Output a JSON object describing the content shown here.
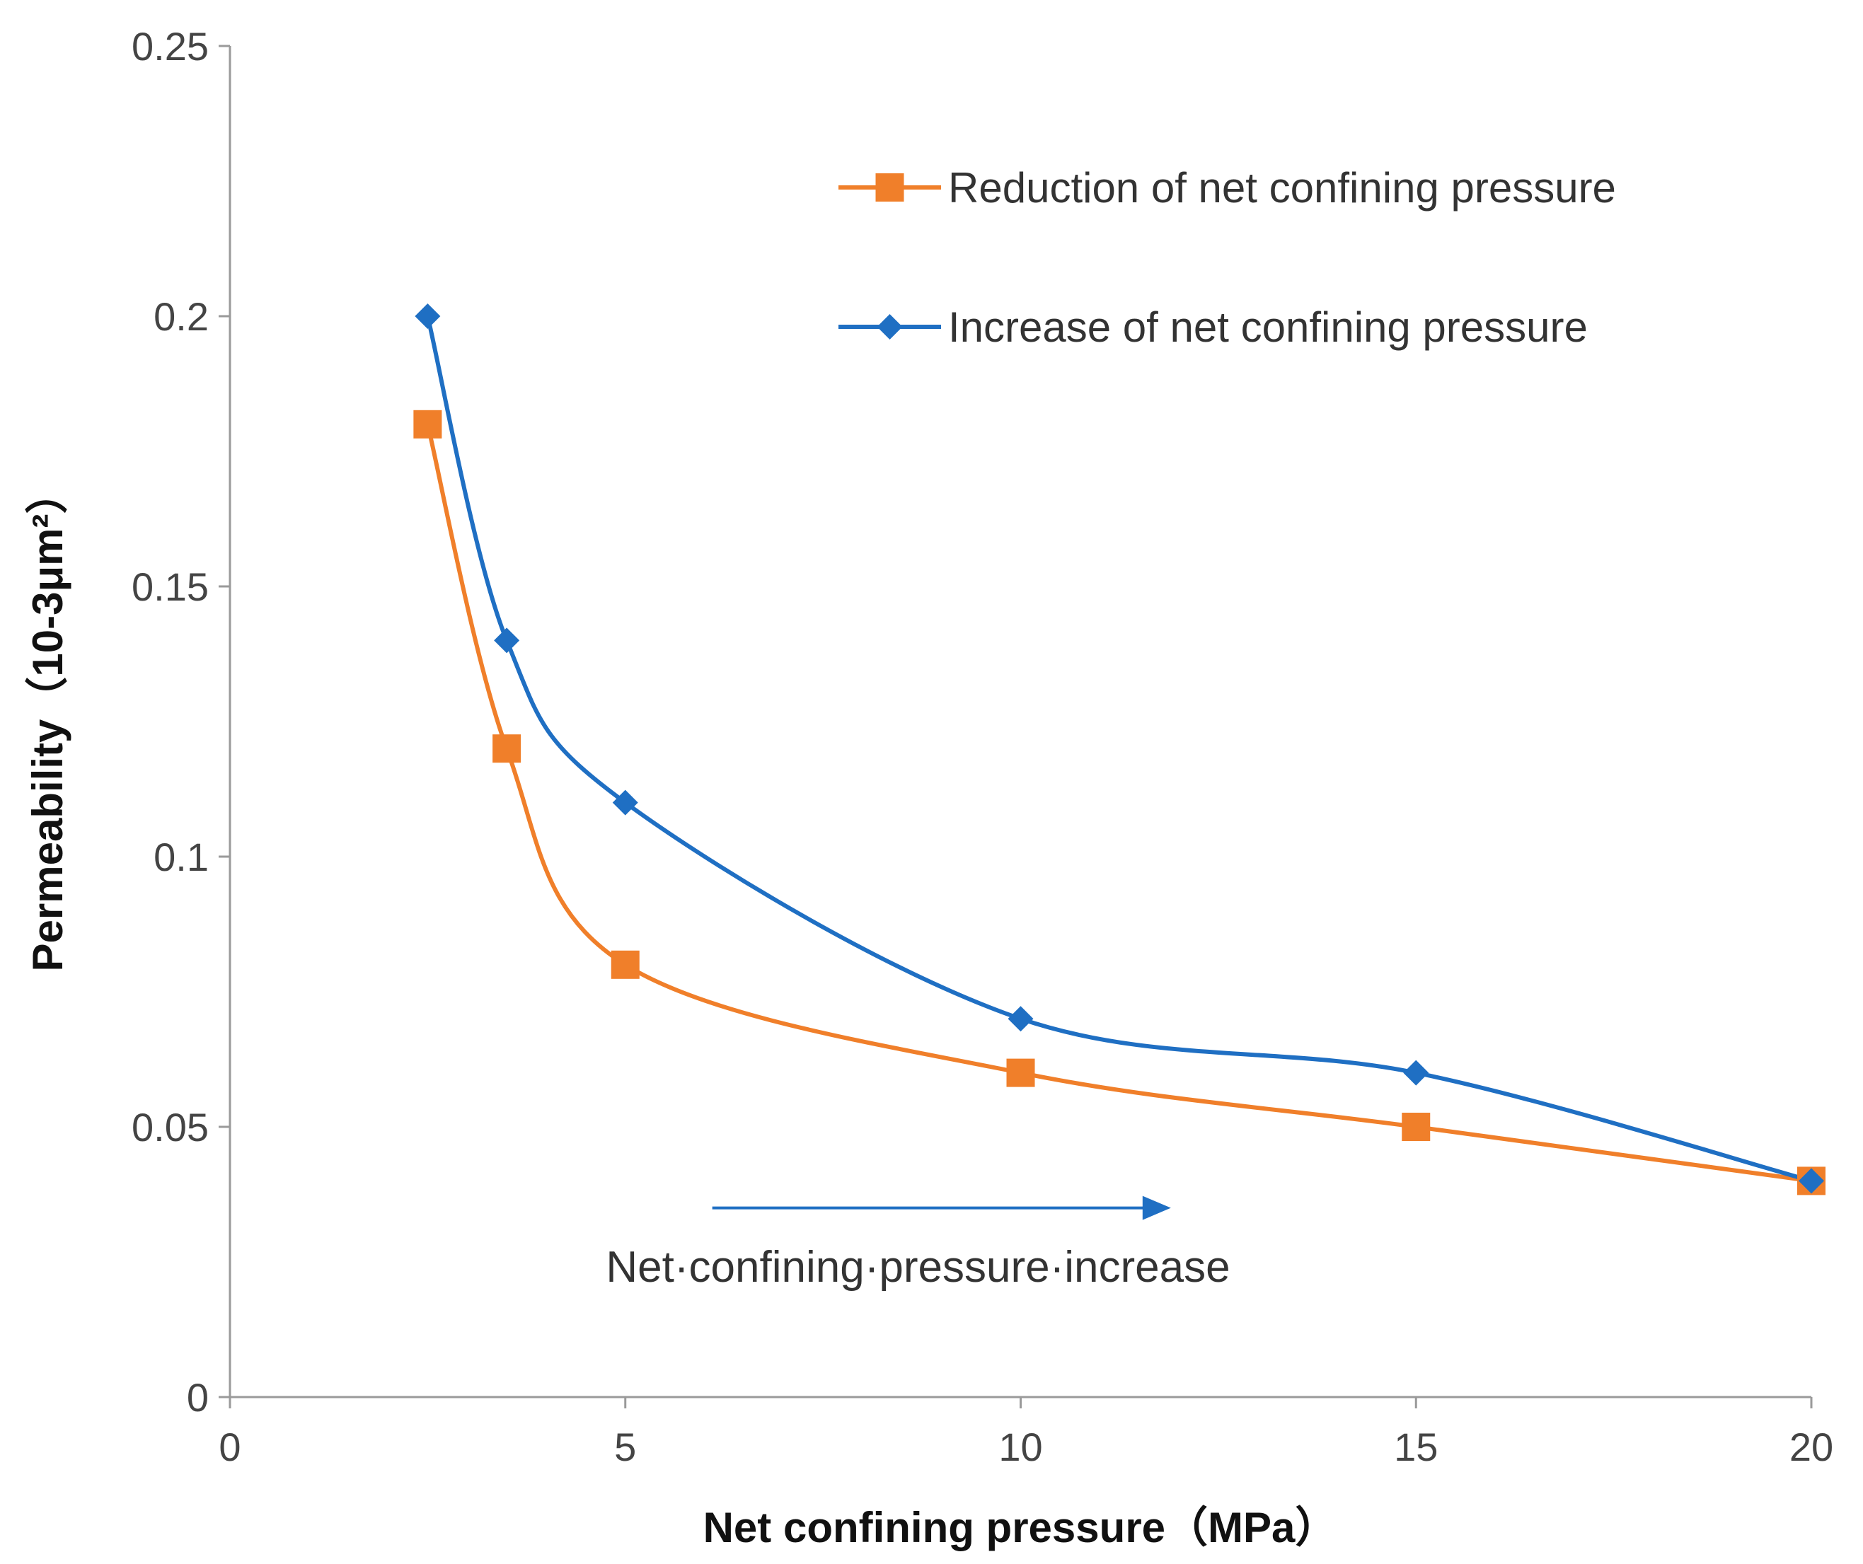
{
  "chart_data": {
    "type": "line",
    "title": "",
    "xlabel": "Net confining pressure（MPa）",
    "ylabel": "Permeability（10-3μm²）",
    "xlim": [
      0,
      20
    ],
    "ylim": [
      0,
      0.25
    ],
    "x_ticks": [
      0,
      5,
      10,
      15,
      20
    ],
    "x_tick_labels": [
      "0",
      "5",
      "10",
      "15",
      "20"
    ],
    "y_ticks": [
      0,
      0.05,
      0.1,
      0.15,
      0.2,
      0.25
    ],
    "y_tick_labels": [
      "0",
      "0.05",
      "0.1",
      "0.15",
      "0.2",
      "0.25"
    ],
    "grid": false,
    "legend_position": "top-right",
    "series": [
      {
        "name": "Reduction of net confining pressure",
        "color": "#F07F2A",
        "marker": "square",
        "x": [
          2.5,
          3.5,
          5,
          10,
          15,
          20
        ],
        "y": [
          0.18,
          0.12,
          0.08,
          0.06,
          0.05,
          0.04
        ]
      },
      {
        "name": "Increase of net confining pressure",
        "color": "#1F6FC3",
        "marker": "diamond",
        "x": [
          2.5,
          3.5,
          5,
          10,
          15,
          20
        ],
        "y": [
          0.2,
          0.14,
          0.11,
          0.07,
          0.06,
          0.04
        ]
      }
    ],
    "annotations": [
      {
        "text": "Net·confining·pressure·increase",
        "arrow_color": "#1F6FC3",
        "arrow_from_x": 6.1,
        "arrow_to_x": 11.9,
        "arrow_y": 0.035,
        "text_x": 10,
        "text_y": 0.02
      }
    ]
  }
}
